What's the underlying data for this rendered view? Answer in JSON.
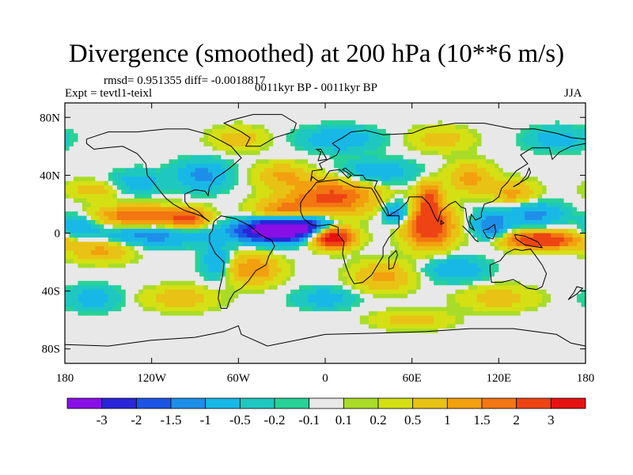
{
  "chart_data": {
    "type": "heatmap",
    "title": "Divergence (smoothed) at 200 hPa (10**6 m/s)",
    "stats_text": "rmsd= 0.951355   diff= -0.0018817",
    "experiment_text": "Expt = tevtl1-teixl",
    "period_text": "0011kyr BP - 0011kyr BP",
    "season_text": "JJA",
    "x_range": [
      -180,
      180
    ],
    "y_range": [
      -90,
      90
    ],
    "x_ticks": [
      {
        "value": -180,
        "label": "180"
      },
      {
        "value": -120,
        "label": "120W"
      },
      {
        "value": -60,
        "label": "60W"
      },
      {
        "value": 0,
        "label": "0"
      },
      {
        "value": 60,
        "label": "60E"
      },
      {
        "value": 120,
        "label": "120E"
      },
      {
        "value": 180,
        "label": "180"
      }
    ],
    "y_ticks": [
      {
        "value": 80,
        "label": "80N"
      },
      {
        "value": 40,
        "label": "40N"
      },
      {
        "value": 0,
        "label": "0"
      },
      {
        "value": -40,
        "label": "40S"
      },
      {
        "value": -80,
        "label": "80S"
      }
    ],
    "colorbar": {
      "colors": [
        "#8a0fe6",
        "#2a26d8",
        "#1c55e4",
        "#1e8fe8",
        "#18b8e6",
        "#1ec8c0",
        "#28d296",
        "#e8e8e8",
        "#a8dc28",
        "#d4e014",
        "#e8c214",
        "#f2a00e",
        "#f27612",
        "#ee4414",
        "#e61212"
      ],
      "labels": [
        "-3",
        "-2",
        "-1.5",
        "-1",
        "-0.5",
        "-0.2",
        "-0.1",
        "0.1",
        "0.2",
        "0.5",
        "1",
        "1.5",
        "2",
        "3"
      ]
    },
    "anomalies": [
      {
        "lon": -35,
        "lat": 2,
        "rx": 26,
        "ry": 8,
        "amp": -4.0
      },
      {
        "lon": -15,
        "lat": 5,
        "rx": 20,
        "ry": 7,
        "amp": -2.0
      },
      {
        "lon": 5,
        "lat": -3,
        "rx": 14,
        "ry": 7,
        "amp": 4.0
      },
      {
        "lon": 5,
        "lat": 25,
        "rx": 30,
        "ry": 12,
        "amp": 2.2
      },
      {
        "lon": -30,
        "lat": 15,
        "rx": 20,
        "ry": 8,
        "amp": 1.5
      },
      {
        "lon": 72,
        "lat": 5,
        "rx": 16,
        "ry": 14,
        "amp": 3.0
      },
      {
        "lon": 72,
        "lat": 25,
        "rx": 8,
        "ry": 10,
        "amp": 2.0
      },
      {
        "lon": 50,
        "lat": 14,
        "rx": 10,
        "ry": 8,
        "amp": -1.5
      },
      {
        "lon": 150,
        "lat": -5,
        "rx": 26,
        "ry": 6,
        "amp": 3.0
      },
      {
        "lon": 115,
        "lat": 5,
        "rx": 12,
        "ry": 10,
        "amp": -1.5
      },
      {
        "lon": 145,
        "lat": 13,
        "rx": 20,
        "ry": 8,
        "amp": -1.2
      },
      {
        "lon": -130,
        "lat": 12,
        "rx": 28,
        "ry": 7,
        "amp": 2.0
      },
      {
        "lon": -95,
        "lat": 10,
        "rx": 14,
        "ry": 7,
        "amp": 2.0
      },
      {
        "lon": -120,
        "lat": -2,
        "rx": 40,
        "ry": 7,
        "amp": -1.2
      },
      {
        "lon": -170,
        "lat": 5,
        "rx": 12,
        "ry": 8,
        "amp": -1.0
      },
      {
        "lon": -155,
        "lat": -12,
        "rx": 20,
        "ry": 8,
        "amp": 1.2
      },
      {
        "lon": -50,
        "lat": -25,
        "rx": 18,
        "ry": 10,
        "amp": 1.5
      },
      {
        "lon": -75,
        "lat": -20,
        "rx": 10,
        "ry": 12,
        "amp": -1.0
      },
      {
        "lon": -85,
        "lat": 40,
        "rx": 18,
        "ry": 10,
        "amp": -1.2
      },
      {
        "lon": -30,
        "lat": 40,
        "rx": 18,
        "ry": 8,
        "amp": 1.0
      },
      {
        "lon": 35,
        "lat": 42,
        "rx": 25,
        "ry": 8,
        "amp": -1.0
      },
      {
        "lon": 100,
        "lat": 38,
        "rx": 15,
        "ry": 10,
        "amp": 1.2
      },
      {
        "lon": 130,
        "lat": 28,
        "rx": 15,
        "ry": 8,
        "amp": 1.2
      },
      {
        "lon": -130,
        "lat": 35,
        "rx": 18,
        "ry": 8,
        "amp": -0.8
      },
      {
        "lon": -160,
        "lat": 30,
        "rx": 18,
        "ry": 6,
        "amp": 0.8
      },
      {
        "lon": 10,
        "lat": 65,
        "rx": 25,
        "ry": 8,
        "amp": -1.0
      },
      {
        "lon": -60,
        "lat": 65,
        "rx": 18,
        "ry": 8,
        "amp": 0.8
      },
      {
        "lon": 160,
        "lat": 65,
        "rx": 20,
        "ry": 8,
        "amp": -0.8
      },
      {
        "lon": 80,
        "lat": 65,
        "rx": 20,
        "ry": 8,
        "amp": 0.8
      },
      {
        "lon": 40,
        "lat": -30,
        "rx": 20,
        "ry": 10,
        "amp": 1.2
      },
      {
        "lon": 90,
        "lat": -25,
        "rx": 20,
        "ry": 8,
        "amp": -1.0
      },
      {
        "lon": 120,
        "lat": -45,
        "rx": 25,
        "ry": 8,
        "amp": 0.8
      },
      {
        "lon": -100,
        "lat": -45,
        "rx": 25,
        "ry": 8,
        "amp": 0.8
      },
      {
        "lon": 0,
        "lat": -45,
        "rx": 20,
        "ry": 7,
        "amp": -0.8
      },
      {
        "lon": -160,
        "lat": -45,
        "rx": 18,
        "ry": 8,
        "amp": -0.8
      },
      {
        "lon": 60,
        "lat": -60,
        "rx": 25,
        "ry": 6,
        "amp": 0.8
      }
    ]
  }
}
